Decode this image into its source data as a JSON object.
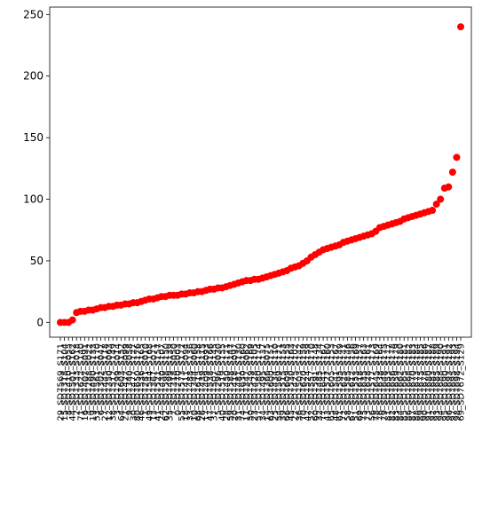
{
  "chart_data": {
    "type": "scatter",
    "color": "#ff0000",
    "categories": [
      "29_SD7569_S171",
      "15_SD7318_S104",
      "8_SD7410_S055",
      "44_SD7501_S162",
      "2_SD7333_S018",
      "71_SD7622_S140",
      "16_SD7407_S091",
      "4_SD7288_S022",
      "19_SD7490_S133",
      "53_SD7561_S170",
      "6_SD7302_S047",
      "27_SD7445_S118",
      "12_SD7350_S063",
      "38_SD7512_S149",
      "3_SD7299_S014",
      "64_SD7603_S152",
      "21_SD7422_S099",
      "9_SD7340_S058",
      "30_SD7477_S127",
      "80_SD7650_S176",
      "46_SD7536_S165",
      "1_SD7281_S010",
      "49_SD7544_S168",
      "13_SD7361_S071",
      "41_SD7521_S157",
      "24_SD7430_S107",
      "62_SD7598_S150",
      "35_SD7499_S139",
      "7_SD7318_S050",
      "0_SD7270_S003",
      "55_SD7573_S172",
      "18_SD7411_S094",
      "33_SD7488_S136",
      "10_SD7344_S060",
      "68_SD7615_S158",
      "26_SD7439_S115",
      "17_SD7409_S093",
      "47_SD7538_S166",
      "37_SD7507_S145",
      "5_SD7296_S030",
      "40_SD7519_S155",
      "28_SD7450_S121",
      "59_SD7588_S147",
      "20_SD7418_S097",
      "31_SD7481_S130",
      "74_SD7630_S160",
      "11_SD7347_S062",
      "50_SD7549_S169",
      "23_SD7428_S105",
      "57_SD7580_S174",
      "34_SD7495_S137",
      "14_SD7366_S075",
      "63_SD7600_S151",
      "25_SD7434_S110",
      "54_SD7569_S171",
      "39_SD7515_S153",
      "66_SD7609_S155",
      "45_SD7530_S163",
      "22_SD7425_S102",
      "36_SD7503_S142",
      "70_SD7620_S159",
      "42_SD7524_S159",
      "52_SD7557_S170",
      "60_SD7591_S148",
      "32_SD7485_S134",
      "77_SD7641_S167",
      "43_SD7527_S160",
      "65_SD7605_S153",
      "48_SD7541_S167",
      "61_SD7595_S149",
      "72_SD7625_S141",
      "58_SD7585_S146",
      "67_SD7612_S156",
      "51_SD7553_S169",
      "69_SD7618_S157",
      "75_SD7635_S163",
      "73_SD7628_S161",
      "56_SD7577_S173",
      "78_SD7645_S169",
      "76_SD7638_S164",
      "79_SD7648_S175",
      "81_SD7653_S177",
      "82_SD7656_S178",
      "83_SD7659_S179",
      "84_SD7662_S180",
      "85_SD7665_S181",
      "86_SD7668_S182",
      "87_SD7670_S183",
      "88_SD7673_S184",
      "89_SD7675_S185",
      "90_SD7678_S186",
      "91_SD7680_S187",
      "92_SD7683_S188",
      "93_SD7685_S189",
      "94_SD7688_S190",
      "95_SD7690_S191",
      "96_SD7693_S192",
      "97_SD7695_S193",
      "98_SD7698_S194",
      "69_SD7672_S129"
    ],
    "values": [
      0,
      0,
      0,
      2,
      8,
      9,
      9,
      10,
      10,
      11,
      12,
      12,
      13,
      13,
      14,
      14,
      15,
      15,
      16,
      16,
      17,
      18,
      19,
      19,
      20,
      21,
      21,
      22,
      22,
      22,
      23,
      23,
      24,
      24,
      25,
      25,
      26,
      27,
      27,
      28,
      28,
      29,
      30,
      31,
      32,
      33,
      34,
      34,
      35,
      35,
      36,
      37,
      38,
      39,
      40,
      41,
      42,
      44,
      45,
      46,
      48,
      50,
      53,
      55,
      57,
      59,
      60,
      61,
      62,
      63,
      65,
      66,
      67,
      68,
      69,
      70,
      71,
      72,
      74,
      77,
      78,
      79,
      80,
      81,
      82,
      84,
      85,
      86,
      87,
      88,
      89,
      90,
      91,
      96,
      100,
      109,
      110,
      122,
      134,
      240
    ],
    "ylim": [
      -12,
      256
    ],
    "yticks": [
      0,
      50,
      100,
      150,
      200,
      250
    ]
  }
}
